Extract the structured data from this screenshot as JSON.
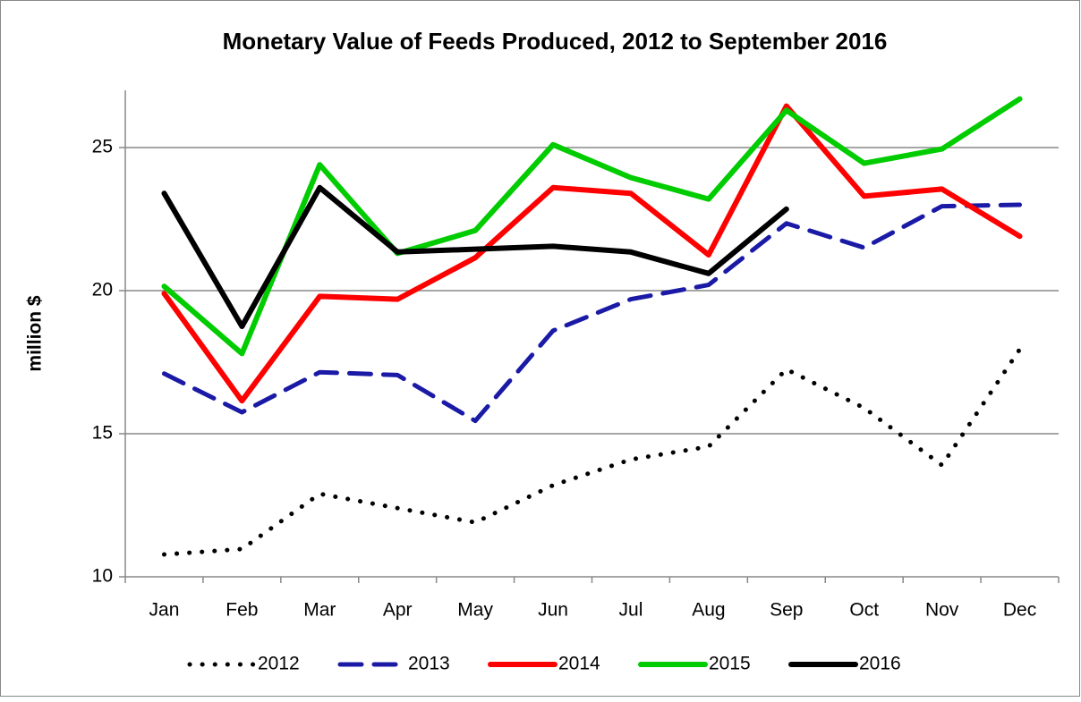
{
  "chart_data": {
    "type": "line",
    "title": "Monetary Value of Feeds Produced, 2012 to September 2016",
    "y_label": "million $",
    "categories": [
      "Jan",
      "Feb",
      "Mar",
      "Apr",
      "May",
      "Jun",
      "Jul",
      "Aug",
      "Sep",
      "Oct",
      "Nov",
      "Dec"
    ],
    "series": [
      {
        "name": "2012",
        "color": "#000000",
        "style": "dotted",
        "values": [
          10.78,
          10.97,
          12.9,
          12.4,
          11.9,
          13.2,
          14.1,
          14.55,
          17.25,
          15.9,
          13.9,
          17.95
        ]
      },
      {
        "name": "2013",
        "color": "#1a1aa6",
        "style": "dashed",
        "values": [
          17.1,
          15.75,
          17.15,
          17.05,
          15.45,
          18.6,
          19.7,
          20.2,
          22.35,
          21.5,
          22.95,
          23.0
        ]
      },
      {
        "name": "2014",
        "color": "#ff0000",
        "style": "solid",
        "values": [
          19.9,
          16.15,
          19.8,
          19.7,
          21.15,
          23.6,
          23.4,
          21.25,
          26.45,
          23.3,
          23.55,
          21.9
        ]
      },
      {
        "name": "2015",
        "color": "#00cc00",
        "style": "solid",
        "values": [
          20.15,
          17.8,
          24.4,
          21.3,
          22.1,
          25.1,
          23.95,
          23.2,
          26.3,
          24.45,
          24.95,
          26.7
        ]
      },
      {
        "name": "2016",
        "color": "#000000",
        "style": "solid",
        "values": [
          23.4,
          18.75,
          23.6,
          21.35,
          21.45,
          21.55,
          21.35,
          20.6,
          22.85,
          null,
          null,
          null
        ]
      }
    ],
    "ylim": [
      10,
      27
    ],
    "yticks": [
      10,
      15,
      20,
      25
    ],
    "grid": true,
    "legend": "bottom"
  }
}
